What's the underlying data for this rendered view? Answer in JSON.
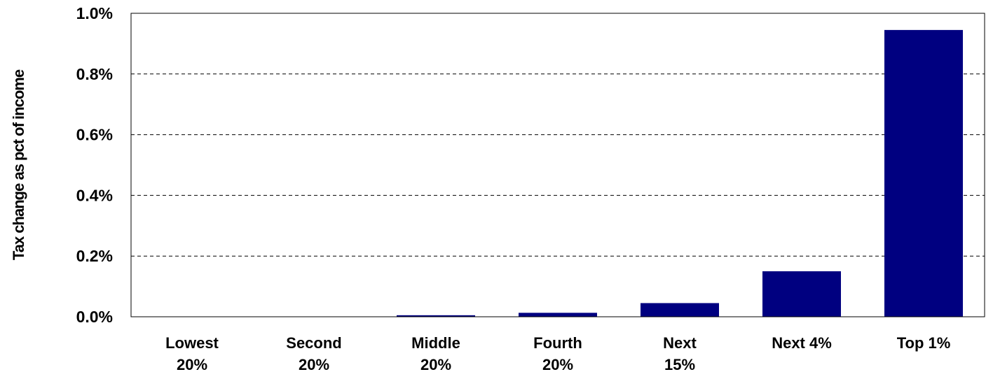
{
  "chart_data": {
    "type": "bar",
    "ylabel": "Tax change as pct of income",
    "categories": [
      [
        "Lowest",
        "20%"
      ],
      [
        "Second",
        "20%"
      ],
      [
        "Middle",
        "20%"
      ],
      [
        "Fourth",
        "20%"
      ],
      [
        "Next",
        "15%"
      ],
      [
        "Next 4%"
      ],
      [
        "Top 1%"
      ]
    ],
    "values": [
      0.0,
      0.0,
      0.005,
      0.013,
      0.045,
      0.15,
      0.945
    ],
    "ylim": [
      0,
      1.0
    ],
    "yticks": [
      0.0,
      0.2,
      0.4,
      0.6,
      0.8,
      1.0
    ],
    "ytick_labels": [
      "0.0%",
      "0.2%",
      "0.4%",
      "0.6%",
      "0.8%",
      "1.0%"
    ],
    "grid": true,
    "bar_color": "#000080"
  }
}
